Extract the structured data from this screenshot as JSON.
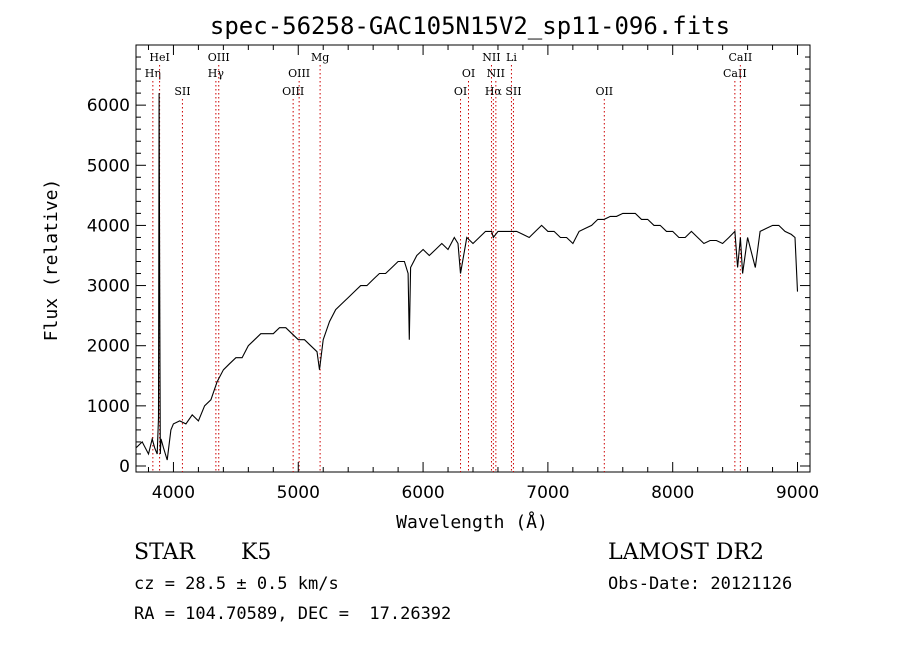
{
  "chart_data": {
    "type": "line",
    "title": "spec-56258-GAC105N15V2_sp11-096.fits",
    "xlabel": "Wavelength (Å)",
    "ylabel": "Flux (relative)",
    "xlim": [
      3700,
      9100
    ],
    "ylim": [
      -100,
      7000
    ],
    "xticks": [
      4000,
      5000,
      6000,
      7000,
      8000,
      9000
    ],
    "yticks": [
      0,
      1000,
      2000,
      3000,
      4000,
      5000,
      6000
    ],
    "grid": false,
    "series": [
      {
        "x": [
          3700,
          3750,
          3800,
          3830,
          3850,
          3870,
          3880,
          3885,
          3890,
          3895,
          3900,
          3920,
          3950,
          3980,
          4000,
          4050,
          4100,
          4150,
          4200,
          4250,
          4300,
          4350,
          4400,
          4450,
          4500,
          4550,
          4600,
          4650,
          4700,
          4750,
          4800,
          4850,
          4900,
          4950,
          5000,
          5050,
          5100,
          5150,
          5170,
          5200,
          5250,
          5300,
          5350,
          5400,
          5450,
          5500,
          5550,
          5600,
          5650,
          5700,
          5750,
          5800,
          5850,
          5880,
          5890,
          5900,
          5950,
          6000,
          6050,
          6100,
          6150,
          6200,
          6250,
          6280,
          6300,
          6350,
          6400,
          6450,
          6500,
          6550,
          6563,
          6600,
          6650,
          6700,
          6750,
          6800,
          6850,
          6900,
          6950,
          7000,
          7050,
          7100,
          7150,
          7200,
          7250,
          7300,
          7350,
          7400,
          7450,
          7500,
          7550,
          7600,
          7650,
          7700,
          7750,
          7800,
          7850,
          7900,
          7950,
          8000,
          8050,
          8100,
          8150,
          8200,
          8250,
          8300,
          8350,
          8400,
          8450,
          8498,
          8520,
          8542,
          8560,
          8600,
          8662,
          8700,
          8750,
          8800,
          8850,
          8900,
          8950,
          8980,
          9000
        ],
        "y": [
          300,
          400,
          200,
          450,
          300,
          200,
          800,
          6200,
          3000,
          200,
          450,
          300,
          100,
          600,
          700,
          750,
          700,
          850,
          750,
          1000,
          1100,
          1400,
          1600,
          1700,
          1800,
          1800,
          2000,
          2100,
          2200,
          2200,
          2200,
          2300,
          2300,
          2200,
          2100,
          2100,
          2000,
          1900,
          1600,
          2100,
          2400,
          2600,
          2700,
          2800,
          2900,
          3000,
          3000,
          3100,
          3200,
          3200,
          3300,
          3400,
          3400,
          3200,
          2100,
          3300,
          3500,
          3600,
          3500,
          3600,
          3700,
          3600,
          3800,
          3700,
          3200,
          3800,
          3700,
          3800,
          3900,
          3900,
          3800,
          3900,
          3900,
          3900,
          3900,
          3850,
          3800,
          3900,
          4000,
          3900,
          3900,
          3800,
          3800,
          3700,
          3900,
          3950,
          4000,
          4100,
          4100,
          4150,
          4150,
          4200,
          4200,
          4200,
          4100,
          4100,
          4000,
          4000,
          3900,
          3900,
          3800,
          3800,
          3900,
          3800,
          3700,
          3750,
          3750,
          3700,
          3800,
          3900,
          3300,
          3800,
          3200,
          3800,
          3300,
          3900,
          3950,
          4000,
          4000,
          3900,
          3850,
          3800,
          2900
        ]
      }
    ],
    "lines": [
      {
        "x": 3835,
        "labels": [
          "Hη"
        ],
        "row": "top2"
      },
      {
        "x": 3889,
        "labels": [
          "HeI"
        ],
        "row": "top1"
      },
      {
        "x": 4072,
        "labels": [
          "SII"
        ],
        "row": "top3"
      },
      {
        "x": 4340,
        "labels": [
          "Hγ"
        ],
        "row": "top2"
      },
      {
        "x": 4363,
        "labels": [
          "OIII"
        ],
        "row": "top1"
      },
      {
        "x": 4959,
        "labels": [
          "OIII"
        ],
        "row": "top3"
      },
      {
        "x": 5007,
        "labels": [
          "OIII"
        ],
        "row": "top2"
      },
      {
        "x": 5175,
        "labels": [
          "Mg"
        ],
        "row": "top1"
      },
      {
        "x": 6300,
        "labels": [
          "OI"
        ],
        "row": "top3"
      },
      {
        "x": 6364,
        "labels": [
          "OI"
        ],
        "row": "top2"
      },
      {
        "x": 6548,
        "labels": [
          "NII"
        ],
        "row": "top1"
      },
      {
        "x": 6563,
        "labels": [
          "Hα"
        ],
        "row": "top3"
      },
      {
        "x": 6583,
        "labels": [
          "NII"
        ],
        "row": "top2"
      },
      {
        "x": 6708,
        "labels": [
          "Li"
        ],
        "row": "top1"
      },
      {
        "x": 6724,
        "labels": [
          "SII"
        ],
        "row": "top3"
      },
      {
        "x": 7452,
        "labels": [
          "OII"
        ],
        "row": "top3"
      },
      {
        "x": 8498,
        "labels": [
          "CaII"
        ],
        "row": "top2"
      },
      {
        "x": 8542,
        "labels": [
          "CaII"
        ],
        "row": "top1"
      }
    ]
  },
  "info": {
    "object_class": "STAR",
    "subclass": "K5",
    "survey": "LAMOST DR2",
    "cz": "cz = 28.5 ± 0.5 km/s",
    "obs_date": "Obs-Date: 20121126",
    "radec": "RA = 104.70589, DEC =  17.26392"
  },
  "colors": {
    "line_marker": "#cc0000",
    "spectrum": "#000000"
  }
}
